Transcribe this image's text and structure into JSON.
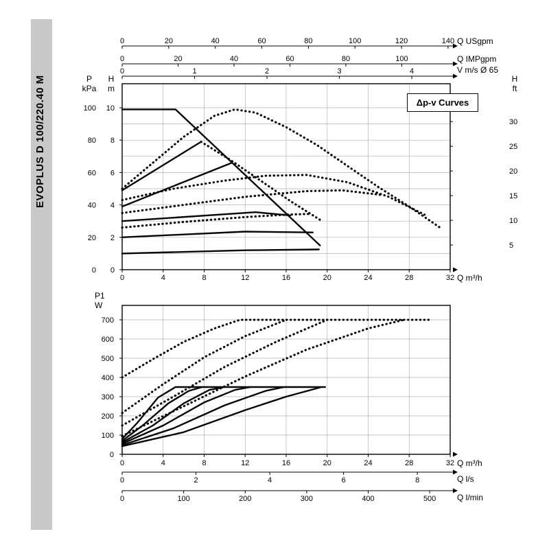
{
  "sidebar": {
    "title": "EVOPLUS D 100/220.40 M"
  },
  "chart_data": [
    {
      "type": "line",
      "legend": "Δp-v Curves",
      "x_axis": {
        "label": "Q m³/h",
        "min": 0,
        "max": 32,
        "ticks": [
          0,
          4,
          8,
          12,
          16,
          20,
          24,
          28,
          32
        ]
      },
      "y_axis_m": {
        "label_letter": "H",
        "label_unit": "m",
        "min": 0,
        "max": 10,
        "ticks": [
          0,
          2,
          4,
          6,
          8,
          10
        ]
      },
      "y_axis_kpa": {
        "label_letter": "P",
        "label_unit": "kPa",
        "ticks": [
          0,
          20,
          40,
          60,
          80,
          100
        ]
      },
      "y_axis_ft": {
        "label_letter": "H",
        "label_unit": "ft",
        "ticks": [
          5,
          10,
          15,
          20,
          25,
          30
        ],
        "ft_per_m": 3.2808
      },
      "top_axes": [
        {
          "label": "Q USgpm",
          "ticks": [
            0,
            20,
            40,
            60,
            80,
            100,
            120,
            140
          ],
          "m3h_per_unit": 0.2271
        },
        {
          "label": "Q IMPgpm",
          "ticks": [
            0,
            20,
            40,
            60,
            80,
            100
          ],
          "m3h_per_unit": 0.2728
        },
        {
          "label": "V m/s Ø 65",
          "ticks": [
            0,
            1,
            2,
            3,
            4
          ],
          "m3h_per_unit": 7.064
        }
      ],
      "series_solid": [
        {
          "name": "max-speed-curve",
          "points": [
            [
              0,
              9.9
            ],
            [
              5.2,
              9.9
            ],
            [
              19.3,
              1.5
            ]
          ]
        },
        {
          "name": "dpv-line-1",
          "points": [
            [
              0,
              4.9
            ],
            [
              7.7,
              7.9
            ]
          ]
        },
        {
          "name": "dpv-line-2",
          "points": [
            [
              0,
              3.9
            ],
            [
              10.7,
              6.6
            ]
          ]
        },
        {
          "name": "dpv-line-3",
          "points": [
            [
              0,
              3.0
            ],
            [
              13.0,
              3.55
            ],
            [
              16.4,
              3.35
            ]
          ]
        },
        {
          "name": "low-curve-2m",
          "points": [
            [
              0,
              2.0
            ],
            [
              12,
              2.35
            ],
            [
              18.6,
              2.3
            ]
          ]
        },
        {
          "name": "low-curve-1m",
          "points": [
            [
              0,
              1.0
            ],
            [
              12,
              1.2
            ],
            [
              19.2,
              1.25
            ]
          ]
        }
      ],
      "series_dotted": [
        {
          "name": "parallel-max",
          "points": [
            [
              0,
              5.0
            ],
            [
              3,
              6.6
            ],
            [
              6,
              8.2
            ],
            [
              9,
              9.5
            ],
            [
              11,
              9.9
            ],
            [
              13,
              9.7
            ],
            [
              16,
              8.8
            ],
            [
              19,
              7.7
            ],
            [
              22,
              6.4
            ],
            [
              25,
              5.1
            ],
            [
              28,
              3.9
            ],
            [
              31,
              2.6
            ]
          ]
        },
        {
          "name": "descent-1",
          "points": [
            [
              7.7,
              7.9
            ],
            [
              10.5,
              6.8
            ],
            [
              13.5,
              5.5
            ],
            [
              16.5,
              4.2
            ],
            [
              19.5,
              3.0
            ]
          ]
        },
        {
          "name": "hump-2",
          "points": [
            [
              0,
              4.3
            ],
            [
              5,
              5.0
            ],
            [
              10,
              5.5
            ],
            [
              14,
              5.8
            ],
            [
              18,
              5.85
            ],
            [
              22,
              5.4
            ],
            [
              26,
              4.5
            ],
            [
              29.5,
              3.4
            ]
          ]
        },
        {
          "name": "hump-3",
          "points": [
            [
              0,
              3.5
            ],
            [
              6,
              4.0
            ],
            [
              12,
              4.5
            ],
            [
              18,
              4.85
            ],
            [
              21.5,
              4.9
            ],
            [
              25.5,
              4.6
            ]
          ]
        },
        {
          "name": "hump-4",
          "points": [
            [
              0,
              2.6
            ],
            [
              6,
              2.95
            ],
            [
              12,
              3.25
            ],
            [
              16,
              3.4
            ],
            [
              18.5,
              3.45
            ]
          ]
        }
      ]
    },
    {
      "type": "line",
      "y_axis": {
        "label_letter": "P1",
        "label_unit": "W",
        "min": 0,
        "max": 700,
        "ticks": [
          0,
          100,
          200,
          300,
          400,
          500,
          600,
          700
        ]
      },
      "x_axis": {
        "label": "Q m³/h",
        "min": 0,
        "max": 32,
        "ticks": [
          0,
          4,
          8,
          12,
          16,
          20,
          24,
          28,
          32
        ]
      },
      "extra_axes": [
        {
          "label": "Q l/s",
          "ticks": [
            0,
            2,
            4,
            6,
            8
          ],
          "m3h_per_unit": 3.6
        },
        {
          "label": "Q l/min",
          "ticks": [
            0,
            100,
            200,
            300,
            400,
            500
          ],
          "m3h_per_unit": 0.06
        }
      ],
      "series_solid": [
        {
          "name": "p1-max",
          "points": [
            [
              0,
              80
            ],
            [
              1.5,
              165
            ],
            [
              3.5,
              295
            ],
            [
              5.2,
              350
            ],
            [
              19.8,
              350
            ]
          ]
        },
        {
          "name": "p1-2",
          "points": [
            [
              0,
              70
            ],
            [
              2,
              150
            ],
            [
              4.5,
              265
            ],
            [
              6.5,
              330
            ],
            [
              7.8,
              350
            ]
          ]
        },
        {
          "name": "p1-3",
          "points": [
            [
              0,
              62
            ],
            [
              3,
              150
            ],
            [
              6,
              265
            ],
            [
              8.5,
              335
            ],
            [
              10,
              350
            ]
          ]
        },
        {
          "name": "p1-4",
          "points": [
            [
              0,
              55
            ],
            [
              4,
              150
            ],
            [
              8,
              270
            ],
            [
              11,
              335
            ],
            [
              12.5,
              350
            ]
          ]
        },
        {
          "name": "p1-5",
          "points": [
            [
              0,
              48
            ],
            [
              5,
              135
            ],
            [
              10,
              255
            ],
            [
              14,
              330
            ],
            [
              15.8,
              350
            ]
          ]
        },
        {
          "name": "p1-6",
          "points": [
            [
              0,
              42
            ],
            [
              6,
              115
            ],
            [
              12,
              230
            ],
            [
              16,
              300
            ],
            [
              19.3,
              348
            ]
          ]
        }
      ],
      "series_dotted": [
        {
          "name": "p1-dpv-1",
          "points": [
            [
              0,
              400
            ],
            [
              3,
              495
            ],
            [
              6,
              585
            ],
            [
              9,
              655
            ],
            [
              11.5,
              700
            ],
            [
              30,
              700
            ]
          ]
        },
        {
          "name": "p1-dpv-2",
          "points": [
            [
              0,
              215
            ],
            [
              4,
              365
            ],
            [
              8,
              505
            ],
            [
              12,
              615
            ],
            [
              16,
              700
            ]
          ]
        },
        {
          "name": "p1-dpv-3",
          "points": [
            [
              0,
              150
            ],
            [
              5,
              300
            ],
            [
              10,
              455
            ],
            [
              15,
              585
            ],
            [
              20,
              700
            ]
          ]
        },
        {
          "name": "p1-dpv-4",
          "points": [
            [
              0,
              95
            ],
            [
              6,
              250
            ],
            [
              12,
              405
            ],
            [
              18,
              545
            ],
            [
              24,
              655
            ],
            [
              27.5,
              700
            ]
          ]
        }
      ]
    }
  ]
}
